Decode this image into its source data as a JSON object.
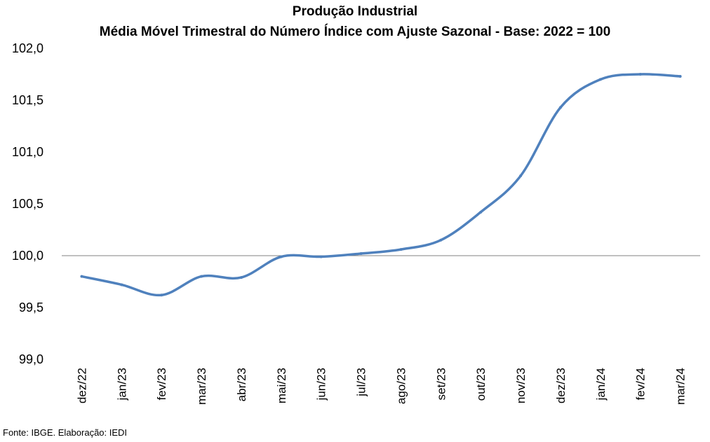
{
  "chart_data": {
    "type": "line",
    "title": "Produção Industrial",
    "subtitle": "Média Móvel Trimestral do Número Índice com Ajuste Sazonal - Base: 2022 = 100",
    "categories": [
      "dez/22",
      "jan/23",
      "fev/23",
      "mar/23",
      "abr/23",
      "mai/23",
      "jun/23",
      "jul/23",
      "ago/23",
      "set/23",
      "out/23",
      "nov/23",
      "dez/23",
      "jan/24",
      "fev/24",
      "mar/24"
    ],
    "series": [
      {
        "values": [
          99.8,
          99.72,
          99.62,
          99.8,
          99.79,
          99.99,
          99.99,
          100.02,
          100.06,
          100.15,
          100.42,
          100.77,
          101.43,
          101.7,
          101.75,
          101.73
        ]
      }
    ],
    "ylim": [
      99.0,
      102.0
    ],
    "yticks": [
      "99,0",
      "99,5",
      "100,0",
      "100,5",
      "101,0",
      "101,5",
      "102,0"
    ],
    "reference_line": 100.0,
    "line_color": "#4F81BD",
    "source": "Fonte: IBGE. Elaboração: IEDI"
  }
}
